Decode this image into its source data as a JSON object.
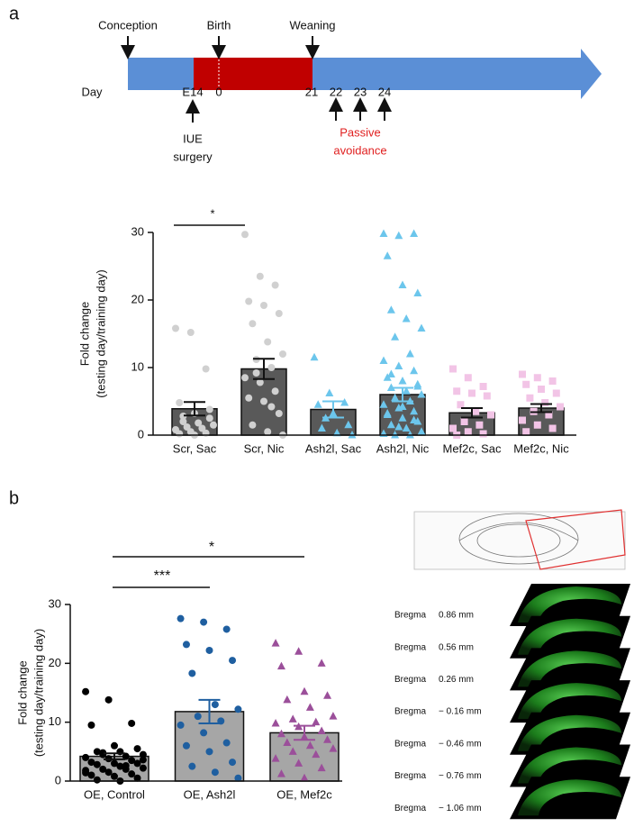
{
  "panel_labels": [
    "a",
    "b"
  ],
  "timeline": {
    "events": [
      "Conception",
      "Birth",
      "Weaning"
    ],
    "day_label": "Day",
    "days": [
      "E14",
      "0",
      "21",
      "22",
      "23",
      "24"
    ],
    "surgery": [
      "IUE",
      "surgery"
    ],
    "test": [
      "Passive",
      "avoidance"
    ]
  },
  "chart_data": [
    {
      "type": "bar",
      "ylabel": [
        "Fold change",
        "(testing day/training day)"
      ],
      "categories": [
        "Scr, Sac",
        "Scr, Nic",
        "Ash2l, Sac",
        "Ash2l, Nic",
        "Mef2c, Sac",
        "Mef2c, Nic"
      ],
      "values": [
        3.9,
        9.8,
        3.8,
        6.0,
        3.3,
        4.0
      ],
      "errors": [
        1.0,
        1.5,
        1.2,
        1.0,
        0.7,
        0.6
      ],
      "color": "#595959",
      "point_colors": [
        "#d0d0d0",
        "#d0d0d0",
        "#6cc6ec",
        "#6cc6ec",
        "#f2c4e6",
        "#f2c4e6"
      ],
      "markers": [
        "circle",
        "circle",
        "triangle",
        "triangle",
        "square",
        "square"
      ],
      "points": [
        [
          15.8,
          15.2,
          9.8,
          4.8,
          3.2,
          2.5,
          2,
          1.8,
          1.5,
          1.2,
          1,
          0.8,
          0.5,
          0.3,
          0.2,
          0,
          3.8,
          2.8
        ],
        [
          29.7,
          23.5,
          22.2,
          19.8,
          19.2,
          18,
          16.5,
          13.8,
          12,
          11.2,
          10,
          8.5,
          7.8,
          6.5,
          5.5,
          5,
          3.2,
          1.5,
          0.5,
          0,
          9.2,
          4.2
        ],
        [
          11.5,
          6.2,
          4.8,
          4.5,
          3.2,
          1.5,
          1,
          0.3,
          0,
          2.5
        ],
        [
          29.8,
          29.5,
          29.8,
          26.5,
          22.2,
          21,
          18.5,
          17.2,
          15.8,
          14.5,
          12,
          11,
          10.2,
          9.5,
          8.5,
          8,
          7.5,
          7,
          6.5,
          6,
          5.5,
          5,
          4.5,
          4,
          3.5,
          3,
          2.5,
          2,
          1.5,
          1,
          0.5,
          0,
          0,
          0.2,
          1.2,
          2.2,
          3.2,
          4.2,
          7.2,
          9
        ],
        [
          9.8,
          8.5,
          7.2,
          6.5,
          6.2,
          5.8,
          4.5,
          3.5,
          3,
          2,
          1.5,
          1,
          0.5,
          0.2,
          0
        ],
        [
          9,
          8.5,
          8,
          7.5,
          6.8,
          6.2,
          5.5,
          4.8,
          4.2,
          3.5,
          3,
          2.2,
          1.5,
          1,
          0.5
        ]
      ],
      "ylim": [
        0,
        30
      ],
      "yticks": [
        0,
        10,
        20,
        30
      ],
      "significance": [
        "*"
      ]
    },
    {
      "type": "bar",
      "ylabel": [
        "Fold change",
        "(testing day/training day)"
      ],
      "categories": [
        "OE, Control",
        "OE, Ash2l",
        "OE, Mef2c"
      ],
      "values": [
        4.2,
        11.8,
        8.2
      ],
      "errors": [
        0.5,
        2.0,
        1.2
      ],
      "color": "#a6a6a6",
      "point_colors": [
        "#000000",
        "#1f5fa0",
        "#9b4f9a"
      ],
      "markers": [
        "circle",
        "circle",
        "triangle"
      ],
      "points": [
        [
          15.2,
          13.8,
          9.8,
          9.5,
          6,
          5.5,
          5,
          5,
          4.5,
          4.5,
          4.2,
          4,
          3.8,
          3.5,
          3.2,
          3,
          3,
          2.8,
          2.5,
          2.2,
          2,
          2,
          1.8,
          1.5,
          1.2,
          1,
          0.8,
          0.5,
          0.2,
          0,
          3.6,
          4.8,
          2.6,
          1.4
        ],
        [
          27.6,
          27,
          25.8,
          23.2,
          22.2,
          20.5,
          18.3,
          13,
          12.2,
          11,
          10.2,
          9.5,
          8.2,
          6.5,
          6,
          5,
          3.2,
          2.5,
          1.5,
          0.5
        ],
        [
          23.4,
          22,
          20,
          19.5,
          15.2,
          14.5,
          13.8,
          12.5,
          11,
          10.5,
          10,
          9.8,
          9.2,
          8.5,
          8,
          7.5,
          7,
          6.5,
          6,
          5.5,
          5,
          4.5,
          3.8,
          3,
          2.2,
          1.2,
          0.5
        ]
      ],
      "ylim": [
        0,
        30
      ],
      "yticks": [
        0,
        10,
        20,
        30
      ],
      "significance": [
        "***",
        "*"
      ]
    }
  ],
  "sections": [
    {
      "name": "Bregma",
      "level": "0.86 mm"
    },
    {
      "name": "Bregma",
      "level": "0.56 mm"
    },
    {
      "name": "Bregma",
      "level": "0.26 mm"
    },
    {
      "name": "Bregma",
      "level": "− 0.16 mm"
    },
    {
      "name": "Bregma",
      "level": "− 0.46 mm"
    },
    {
      "name": "Bregma",
      "level": "− 0.76 mm"
    },
    {
      "name": "Bregma",
      "level": "− 1.06 mm"
    }
  ]
}
